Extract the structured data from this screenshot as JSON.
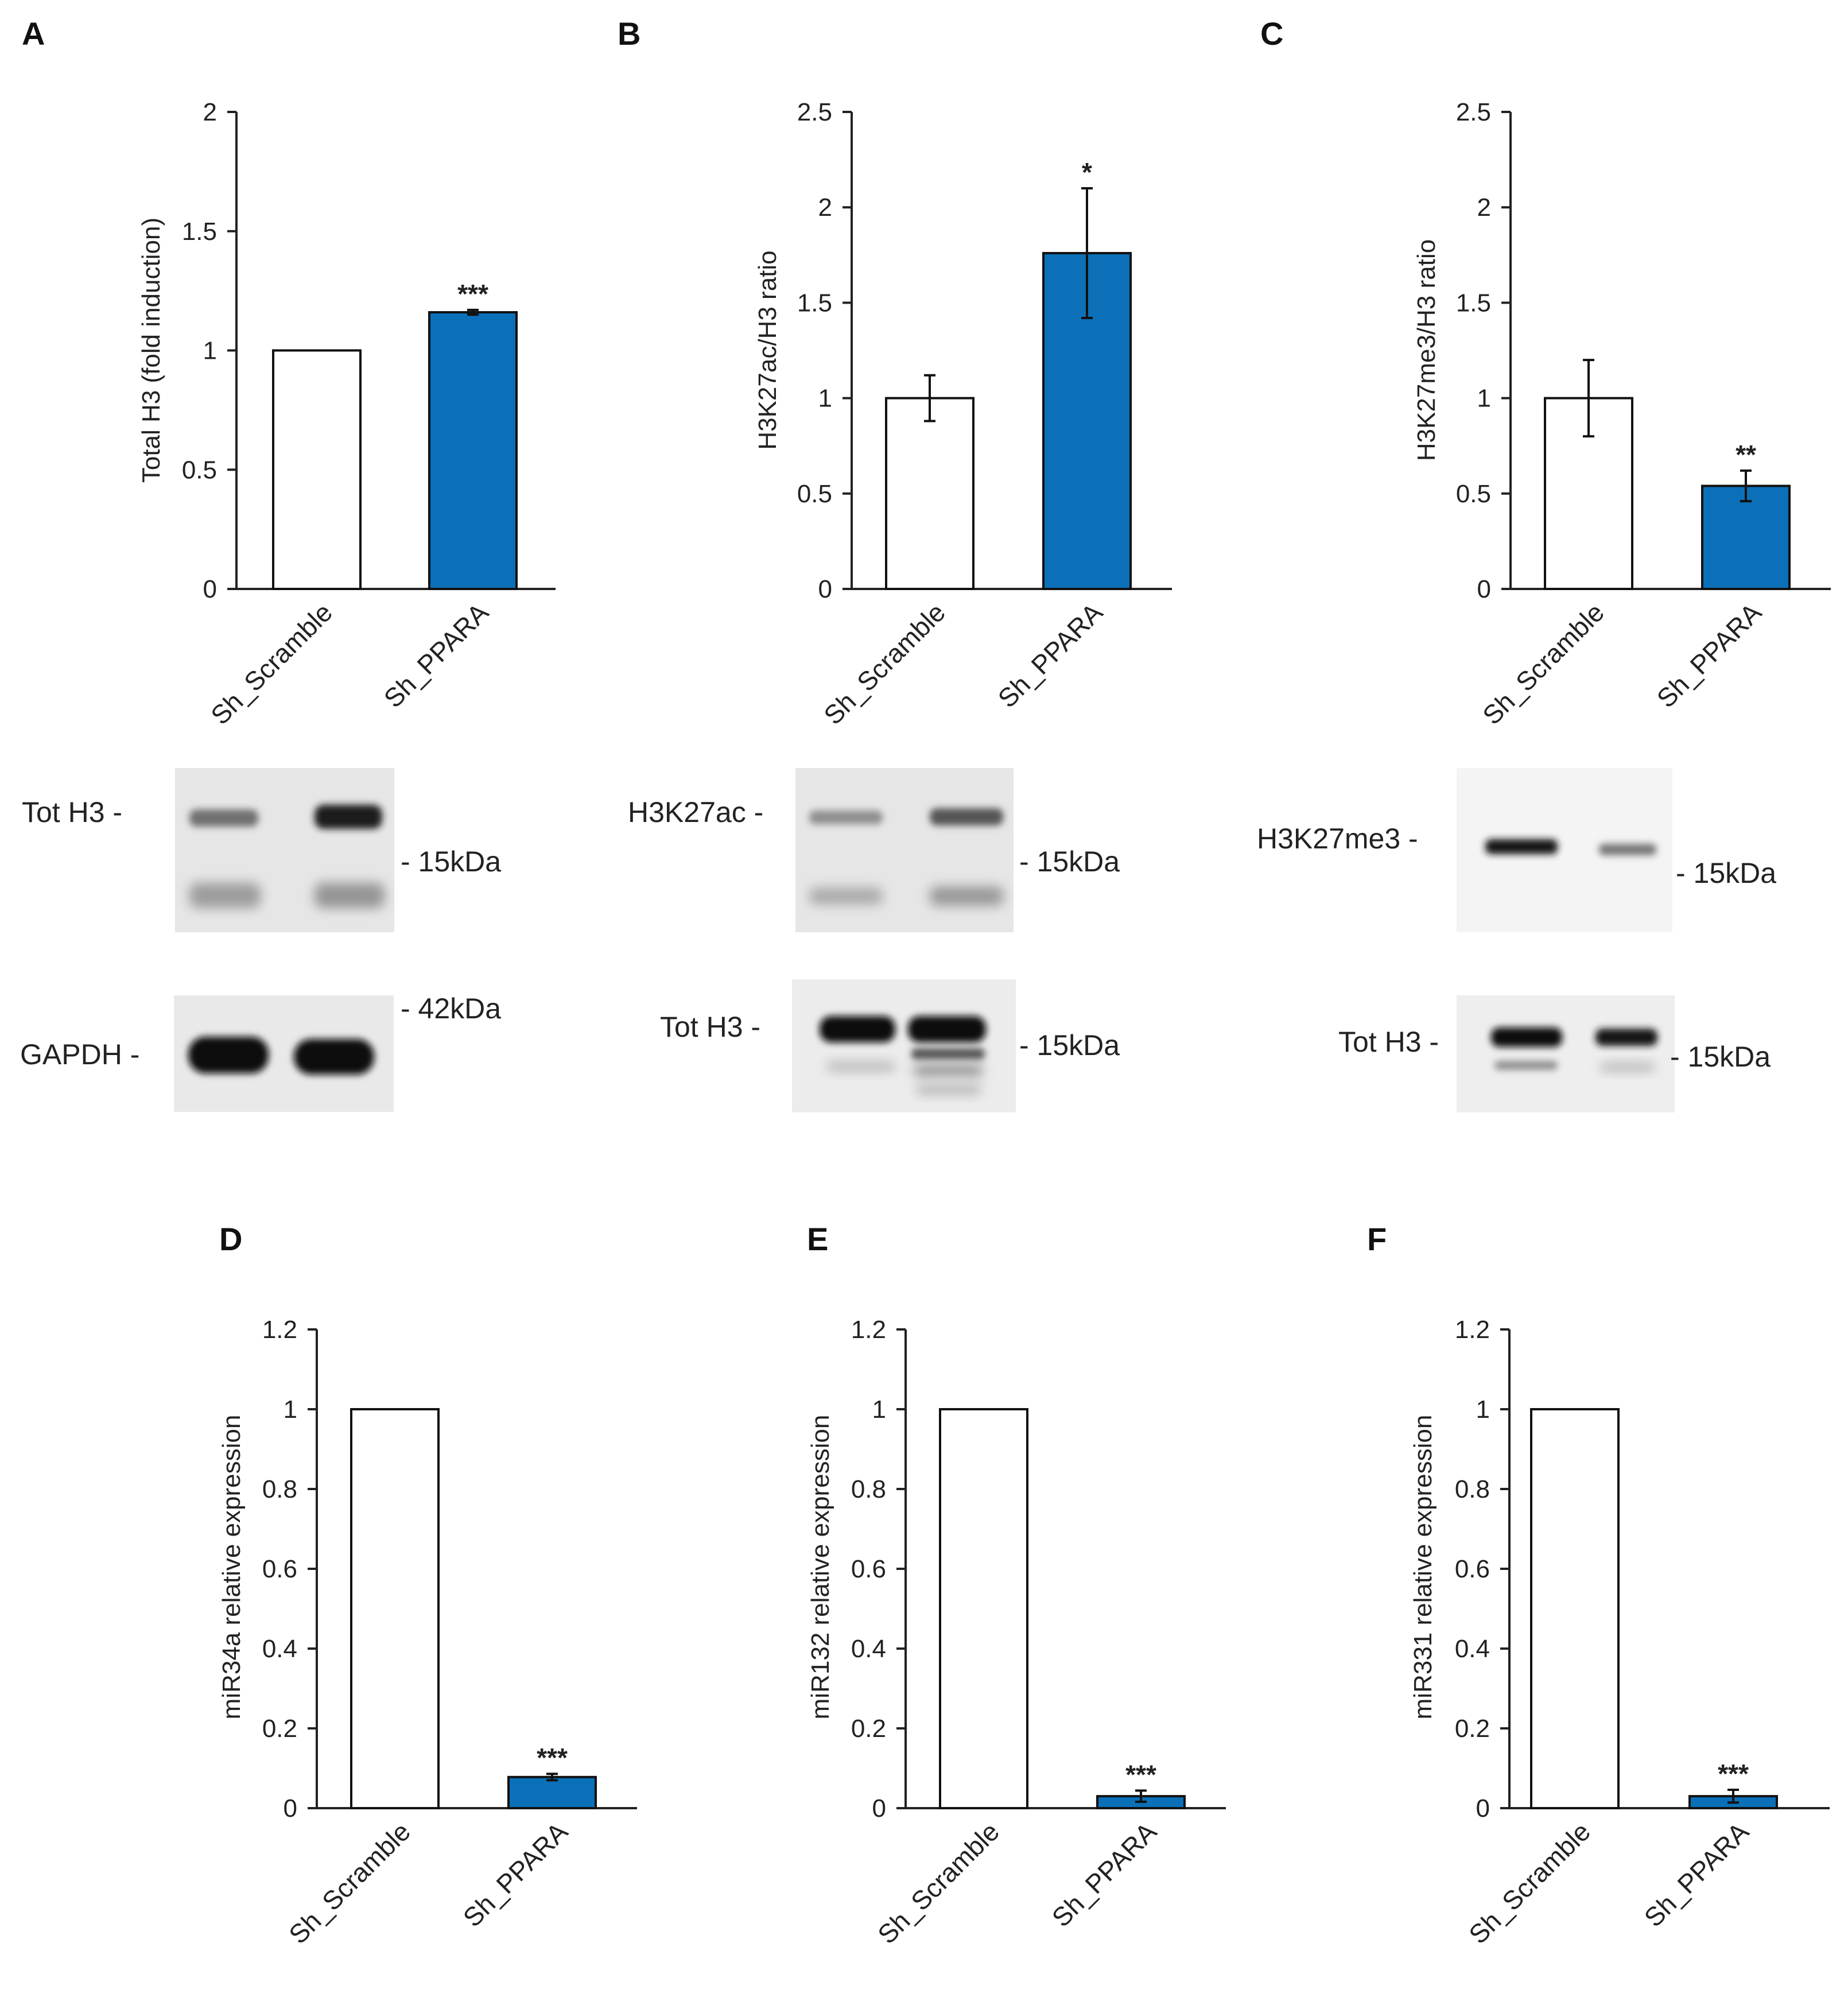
{
  "colors": {
    "control": "#ffffff",
    "treated": "#0b70b8",
    "axis": "#222222",
    "stroke": "#111111"
  },
  "panels": [
    {
      "label": "A"
    },
    {
      "label": "B"
    },
    {
      "label": "C"
    },
    {
      "label": "D"
    },
    {
      "label": "E"
    },
    {
      "label": "F"
    }
  ],
  "chart_data": [
    {
      "type": "bar",
      "panel": "A",
      "ylabel": "Total H3 (fold induction)",
      "categories": [
        "Sh_Scramble",
        "Sh_PPARA"
      ],
      "values": [
        1.0,
        1.16
      ],
      "errors": [
        0,
        0.01
      ],
      "significance": [
        "",
        "***"
      ],
      "ylim": [
        0,
        2
      ],
      "yticks": [
        "0",
        "0.5",
        "1",
        "1.5",
        "2"
      ],
      "legend": "none",
      "grid": false
    },
    {
      "type": "bar",
      "panel": "B",
      "ylabel": "H3K27ac/H3 ratio",
      "categories": [
        "Sh_Scramble",
        "Sh_PPARA"
      ],
      "values": [
        1.0,
        1.76
      ],
      "errors": [
        0.12,
        0.34
      ],
      "significance": [
        "",
        "*"
      ],
      "ylim": [
        0,
        2.5
      ],
      "yticks": [
        "0",
        "0.5",
        "1",
        "1.5",
        "2",
        "2.5"
      ],
      "legend": "none",
      "grid": false
    },
    {
      "type": "bar",
      "panel": "C",
      "ylabel": "H3K27me3/H3  ratio",
      "categories": [
        "Sh_Scramble",
        "Sh_PPARA"
      ],
      "values": [
        1.0,
        0.54
      ],
      "errors": [
        0.2,
        0.08
      ],
      "significance": [
        "",
        "**"
      ],
      "ylim": [
        0,
        2.5
      ],
      "yticks": [
        "0",
        "0.5",
        "1",
        "1.5",
        "2",
        "2.5"
      ],
      "legend": "none",
      "grid": false
    },
    {
      "type": "bar",
      "panel": "D",
      "ylabel": "miR34a relative expression",
      "categories": [
        "Sh_Scramble",
        "Sh_PPARA"
      ],
      "values": [
        1.0,
        0.078
      ],
      "errors": [
        0,
        0.008
      ],
      "significance": [
        "",
        "***"
      ],
      "ylim": [
        0,
        1.2
      ],
      "yticks": [
        "0",
        "0.2",
        "0.4",
        "0.6",
        "0.8",
        "1",
        "1.2"
      ],
      "legend": "none",
      "grid": false
    },
    {
      "type": "bar",
      "panel": "E",
      "ylabel": "miR132 relative expression",
      "categories": [
        "Sh_Scramble",
        "Sh_PPARA"
      ],
      "values": [
        1.0,
        0.03
      ],
      "errors": [
        0,
        0.014
      ],
      "significance": [
        "",
        "***"
      ],
      "ylim": [
        0,
        1.2
      ],
      "yticks": [
        "0",
        "0.2",
        "0.4",
        "0.6",
        "0.8",
        "1",
        "1.2"
      ],
      "legend": "none",
      "grid": false
    },
    {
      "type": "bar",
      "panel": "F",
      "ylabel": "miR331 relative expression",
      "categories": [
        "Sh_Scramble",
        "Sh_PPARA"
      ],
      "values": [
        1.0,
        0.03
      ],
      "errors": [
        0,
        0.016
      ],
      "significance": [
        "",
        "***"
      ],
      "ylim": [
        0,
        1.2
      ],
      "yticks": [
        "0",
        "0.2",
        "0.4",
        "0.6",
        "0.8",
        "1",
        "1.2"
      ],
      "legend": "none",
      "grid": false
    }
  ],
  "blots": {
    "A": {
      "upper": {
        "name": "Tot H3 -",
        "marker": "- 15kDa"
      },
      "lower": {
        "name": "GAPDH -",
        "marker": "- 42kDa"
      }
    },
    "B": {
      "upper": {
        "name": "H3K27ac -",
        "marker": "- 15kDa"
      },
      "lower": {
        "name": "Tot H3 -",
        "marker": "- 15kDa"
      }
    },
    "C": {
      "upper": {
        "name": "H3K27me3 -",
        "marker": "- 15kDa"
      },
      "lower": {
        "name": "Tot H3 -",
        "marker": "- 15kDa"
      }
    }
  }
}
